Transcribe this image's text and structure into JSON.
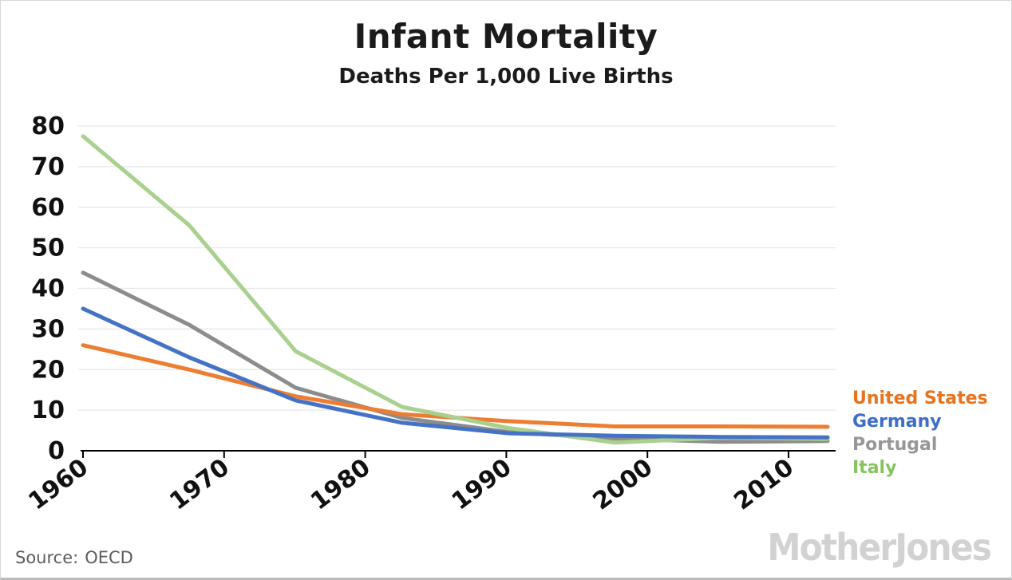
{
  "header": {
    "title": "Infant Mortality",
    "subtitle": "Deaths Per 1,000 Live Births"
  },
  "footer": {
    "source_label": "Source:",
    "source_value": "OECD",
    "watermark": "MotherJones"
  },
  "chart_data": {
    "type": "line",
    "title": "Infant Mortality",
    "subtitle": "Deaths Per 1,000 Live Births",
    "x": [
      1960,
      1970,
      1980,
      1990,
      2000,
      2005,
      2010,
      2013
    ],
    "x_spacing": "equal",
    "series": [
      {
        "name": "United States",
        "color": "#ED7D31",
        "label_color": "#E8731C",
        "values": [
          26.0,
          20.0,
          13.4,
          9.0,
          7.3,
          6.0,
          6.0,
          5.9
        ]
      },
      {
        "name": "Germany",
        "color": "#4472C4",
        "label_color": "#3E6DC6",
        "values": [
          35.0,
          23.0,
          12.4,
          6.9,
          4.3,
          3.7,
          3.4,
          3.3
        ]
      },
      {
        "name": "Portugal",
        "color": "#8C8C8C",
        "label_color": "#979797",
        "values": [
          43.9,
          31.0,
          15.5,
          8.1,
          4.6,
          3.0,
          2.2,
          2.4
        ]
      },
      {
        "name": "Italy",
        "color": "#A9D08E",
        "label_color": "#85C45F",
        "values": [
          77.5,
          55.5,
          24.5,
          10.8,
          5.6,
          2.0,
          3.2,
          2.9
        ]
      }
    ],
    "draw_order": [
      "Portugal",
      "United States",
      "Italy",
      "Germany"
    ],
    "ylim": [
      0,
      80
    ],
    "yticks": [
      0,
      10,
      20,
      30,
      40,
      50,
      60,
      70,
      80
    ],
    "xtick_labels": [
      "1960",
      "1970",
      "1980",
      "1990",
      "2000",
      "2010"
    ],
    "grid": "horizontal",
    "gridline_color": "#e7e7e7",
    "axis_color": "#000000",
    "tick_label_color": "#111111",
    "legend_position": "right"
  }
}
